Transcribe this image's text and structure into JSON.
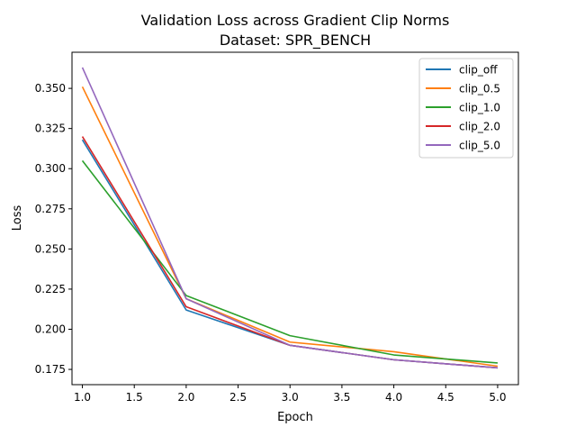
{
  "chart_data": {
    "type": "line",
    "title": "Validation Loss across Gradient Clip Norms",
    "subtitle": "Dataset: SPR_BENCH",
    "xlabel": "Epoch",
    "ylabel": "Loss",
    "x": [
      1.0,
      2.0,
      3.0,
      4.0,
      5.0
    ],
    "xlim": [
      0.9,
      5.2
    ],
    "ylim": [
      0.1655,
      0.3725
    ],
    "xticks": [
      "1.0",
      "1.5",
      "2.0",
      "2.5",
      "3.0",
      "3.5",
      "4.0",
      "4.5",
      "5.0"
    ],
    "yticks": [
      "0.175",
      "0.200",
      "0.225",
      "0.250",
      "0.275",
      "0.300",
      "0.325",
      "0.350"
    ],
    "grid": false,
    "legend_position": "top-right",
    "series": [
      {
        "name": "clip_off",
        "color": "#1f77b4",
        "values": [
          0.318,
          0.212,
          0.19,
          0.181,
          0.176
        ]
      },
      {
        "name": "clip_0.5",
        "color": "#ff7f0e",
        "values": [
          0.351,
          0.219,
          0.192,
          0.186,
          0.177
        ]
      },
      {
        "name": "clip_1.0",
        "color": "#2ca02c",
        "values": [
          0.305,
          0.221,
          0.196,
          0.184,
          0.179
        ]
      },
      {
        "name": "clip_2.0",
        "color": "#d62728",
        "values": [
          0.32,
          0.214,
          0.19,
          0.181,
          0.176
        ]
      },
      {
        "name": "clip_5.0",
        "color": "#9467bd",
        "values": [
          0.363,
          0.219,
          0.19,
          0.181,
          0.176
        ]
      }
    ]
  }
}
